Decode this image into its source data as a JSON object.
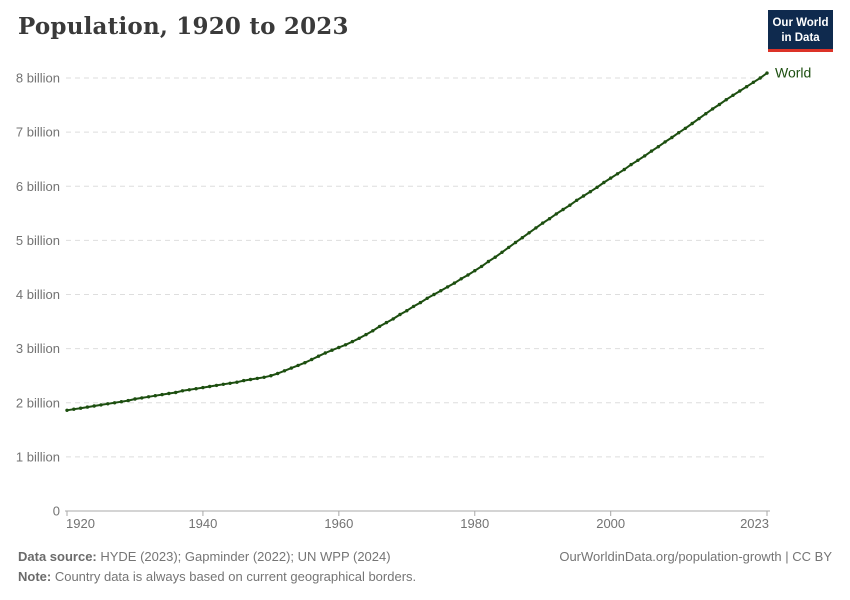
{
  "header": {
    "title": "Population, 1920 to 2023",
    "logo": {
      "line1": "Our World",
      "line2": "in Data",
      "bg_color": "#0f2a4e",
      "accent_color": "#dc3328"
    }
  },
  "chart_data": {
    "type": "line",
    "title": "Population, 1920 to 2023",
    "xlabel": "",
    "ylabel": "",
    "xlim": [
      1920,
      2023
    ],
    "ylim_billions": [
      0,
      8
    ],
    "grid": "dashed-horizontal",
    "unit": "billions of people",
    "x_ticks": [
      "1920",
      "1940",
      "1960",
      "1980",
      "2000",
      "2023"
    ],
    "y_ticks": [
      "0",
      "1 billion",
      "2 billion",
      "3 billion",
      "4 billion",
      "5 billion",
      "6 billion",
      "7 billion",
      "8 billion"
    ],
    "colors": {
      "grid": "#dedede",
      "axis": "#a8a8a8",
      "tick_label": "#737373"
    },
    "series": [
      {
        "name": "World",
        "color": "#1d4f10",
        "x": [
          1920,
          1921,
          1922,
          1923,
          1924,
          1925,
          1926,
          1927,
          1928,
          1929,
          1930,
          1931,
          1932,
          1933,
          1934,
          1935,
          1936,
          1937,
          1938,
          1939,
          1940,
          1941,
          1942,
          1943,
          1944,
          1945,
          1946,
          1947,
          1948,
          1949,
          1950,
          1951,
          1952,
          1953,
          1954,
          1955,
          1956,
          1957,
          1958,
          1959,
          1960,
          1961,
          1962,
          1963,
          1964,
          1965,
          1966,
          1967,
          1968,
          1969,
          1970,
          1971,
          1972,
          1973,
          1974,
          1975,
          1976,
          1977,
          1978,
          1979,
          1980,
          1981,
          1982,
          1983,
          1984,
          1985,
          1986,
          1987,
          1988,
          1989,
          1990,
          1991,
          1992,
          1993,
          1994,
          1995,
          1996,
          1997,
          1998,
          1999,
          2000,
          2001,
          2002,
          2003,
          2004,
          2005,
          2006,
          2007,
          2008,
          2009,
          2010,
          2011,
          2012,
          2013,
          2014,
          2015,
          2016,
          2017,
          2018,
          2019,
          2020,
          2021,
          2022,
          2023
        ],
        "values_billions": [
          1.86,
          1.88,
          1.9,
          1.92,
          1.94,
          1.96,
          1.98,
          2.0,
          2.02,
          2.04,
          2.07,
          2.09,
          2.11,
          2.13,
          2.15,
          2.17,
          2.19,
          2.22,
          2.24,
          2.26,
          2.28,
          2.3,
          2.32,
          2.34,
          2.36,
          2.38,
          2.41,
          2.43,
          2.45,
          2.47,
          2.5,
          2.54,
          2.59,
          2.64,
          2.69,
          2.74,
          2.8,
          2.86,
          2.92,
          2.97,
          3.02,
          3.07,
          3.13,
          3.19,
          3.26,
          3.33,
          3.41,
          3.48,
          3.55,
          3.63,
          3.7,
          3.78,
          3.85,
          3.93,
          4.0,
          4.07,
          4.14,
          4.21,
          4.29,
          4.36,
          4.44,
          4.52,
          4.61,
          4.69,
          4.78,
          4.87,
          4.96,
          5.05,
          5.14,
          5.23,
          5.32,
          5.4,
          5.49,
          5.57,
          5.65,
          5.74,
          5.82,
          5.9,
          5.98,
          6.07,
          6.15,
          6.23,
          6.31,
          6.4,
          6.48,
          6.56,
          6.65,
          6.73,
          6.82,
          6.9,
          6.99,
          7.07,
          7.16,
          7.25,
          7.34,
          7.43,
          7.51,
          7.6,
          7.68,
          7.76,
          7.84,
          7.92,
          8.0,
          8.09
        ]
      }
    ]
  },
  "footer": {
    "data_source_label": "Data source:",
    "data_source_text": " HYDE (2023); Gapminder (2022); UN WPP (2024)",
    "note_label": "Note:",
    "note_text": " Country data is always based on current geographical borders.",
    "link": "OurWorldinData.org/population-growth | CC BY"
  }
}
